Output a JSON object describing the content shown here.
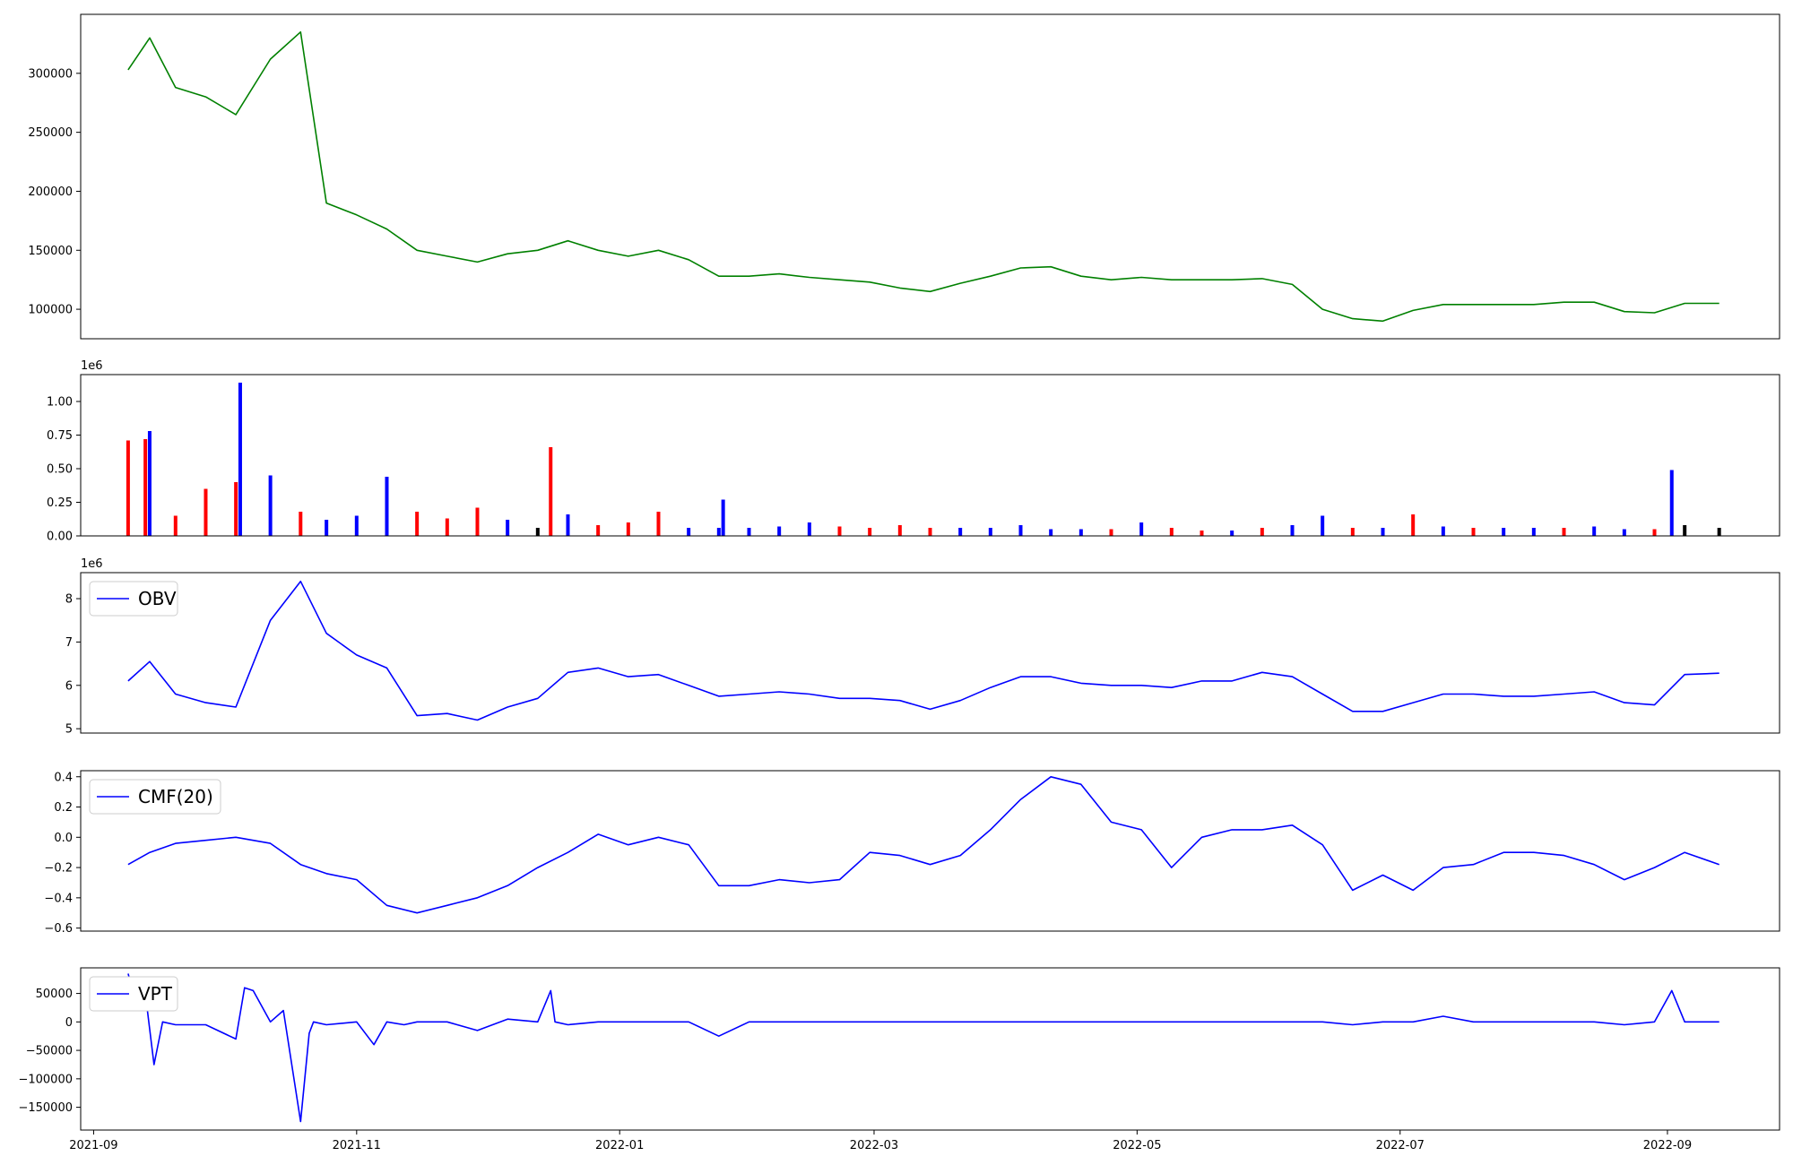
{
  "chart_data": [
    {
      "type": "line",
      "x_unit": "date",
      "x": [
        "2021-09-09",
        "2021-09-14",
        "2021-09-20",
        "2021-09-27",
        "2021-10-04",
        "2021-10-12",
        "2021-10-19",
        "2021-10-25",
        "2021-11-01",
        "2021-11-08",
        "2021-11-15",
        "2021-11-22",
        "2021-11-29",
        "2021-12-06",
        "2021-12-13",
        "2021-12-20",
        "2021-12-27",
        "2022-01-03",
        "2022-01-10",
        "2022-01-17",
        "2022-01-24",
        "2022-01-31",
        "2022-02-07",
        "2022-02-14",
        "2022-02-21",
        "2022-02-28",
        "2022-03-07",
        "2022-03-14",
        "2022-03-21",
        "2022-03-28",
        "2022-04-04",
        "2022-04-11",
        "2022-04-18",
        "2022-04-25",
        "2022-05-02",
        "2022-05-09",
        "2022-05-16",
        "2022-05-23",
        "2022-05-30",
        "2022-06-06",
        "2022-06-13",
        "2022-06-20",
        "2022-06-27",
        "2022-07-04",
        "2022-07-11",
        "2022-07-18",
        "2022-07-25",
        "2022-08-01",
        "2022-08-08",
        "2022-08-15",
        "2022-08-22",
        "2022-08-29",
        "2022-09-05",
        "2022-09-13"
      ],
      "series": [
        {
          "values": [
            303000,
            330000,
            288000,
            280000,
            265000,
            312000,
            335000,
            190000,
            180000,
            168000,
            150000,
            145000,
            140000,
            147000,
            150000,
            158000,
            150000,
            145000,
            150000,
            142000,
            128000,
            128000,
            130000,
            127000,
            125000,
            123000,
            118000,
            115000,
            122000,
            128000,
            135000,
            136000,
            128000,
            125000,
            127000,
            125000,
            125000,
            125000,
            126000,
            121000,
            100000,
            92000,
            90000,
            99000,
            104000,
            104000,
            104000,
            104000,
            106000,
            106000,
            98000,
            97000,
            105000,
            105000
          ]
        }
      ],
      "ylim": [
        75000,
        350000
      ],
      "yticks": [
        100000,
        150000,
        200000,
        250000,
        300000
      ],
      "ytick_labels": [
        "100000",
        "150000",
        "200000",
        "250000",
        "300000"
      ],
      "line_color": "#008000"
    },
    {
      "type": "bar",
      "x_unit": "date",
      "x": [
        "2021-09-09",
        "2021-09-13",
        "2021-09-14",
        "2021-09-20",
        "2021-09-27",
        "2021-10-04",
        "2021-10-05",
        "2021-10-12",
        "2021-10-19",
        "2021-10-25",
        "2021-11-01",
        "2021-11-08",
        "2021-11-15",
        "2021-11-22",
        "2021-11-29",
        "2021-12-06",
        "2021-12-13",
        "2021-12-16",
        "2021-12-20",
        "2021-12-27",
        "2022-01-03",
        "2022-01-10",
        "2022-01-17",
        "2022-01-24",
        "2022-01-25",
        "2022-01-31",
        "2022-02-07",
        "2022-02-14",
        "2022-02-21",
        "2022-02-28",
        "2022-03-07",
        "2022-03-14",
        "2022-03-21",
        "2022-03-28",
        "2022-04-04",
        "2022-04-11",
        "2022-04-18",
        "2022-04-25",
        "2022-05-02",
        "2022-05-09",
        "2022-05-16",
        "2022-05-23",
        "2022-05-30",
        "2022-06-06",
        "2022-06-13",
        "2022-06-20",
        "2022-06-27",
        "2022-07-04",
        "2022-07-11",
        "2022-07-18",
        "2022-07-25",
        "2022-08-01",
        "2022-08-08",
        "2022-08-15",
        "2022-08-22",
        "2022-08-29",
        "2022-09-02",
        "2022-09-05",
        "2022-09-13"
      ],
      "values": [
        710000,
        720000,
        780000,
        150000,
        350000,
        400000,
        1140000,
        450000,
        180000,
        120000,
        150000,
        440000,
        180000,
        130000,
        210000,
        120000,
        60000,
        660000,
        160000,
        80000,
        100000,
        180000,
        60000,
        60000,
        270000,
        60000,
        70000,
        100000,
        70000,
        60000,
        80000,
        60000,
        60000,
        60000,
        80000,
        50000,
        50000,
        50000,
        100000,
        60000,
        40000,
        40000,
        60000,
        80000,
        150000,
        60000,
        60000,
        160000,
        70000,
        60000,
        60000,
        60000,
        60000,
        70000,
        50000,
        50000,
        490000,
        80000,
        60000
      ],
      "colors": [
        "#ff0000",
        "#ff0000",
        "#0000ff",
        "#ff0000",
        "#ff0000",
        "#ff0000",
        "#0000ff",
        "#0000ff",
        "#ff0000",
        "#0000ff",
        "#0000ff",
        "#0000ff",
        "#ff0000",
        "#ff0000",
        "#ff0000",
        "#0000ff",
        "#000000",
        "#ff0000",
        "#0000ff",
        "#ff0000",
        "#ff0000",
        "#ff0000",
        "#0000ff",
        "#0000ff",
        "#0000ff",
        "#0000ff",
        "#0000ff",
        "#0000ff",
        "#ff0000",
        "#ff0000",
        "#ff0000",
        "#ff0000",
        "#0000ff",
        "#0000ff",
        "#0000ff",
        "#0000ff",
        "#0000ff",
        "#ff0000",
        "#0000ff",
        "#ff0000",
        "#ff0000",
        "#0000ff",
        "#ff0000",
        "#0000ff",
        "#0000ff",
        "#ff0000",
        "#0000ff",
        "#ff0000",
        "#0000ff",
        "#ff0000",
        "#0000ff",
        "#0000ff",
        "#ff0000",
        "#0000ff",
        "#0000ff",
        "#ff0000",
        "#0000ff",
        "#000000",
        "#000000"
      ],
      "offset_label": "1e6",
      "ylim": [
        0,
        1200000
      ],
      "yticks": [
        0,
        250000,
        500000,
        750000,
        1000000
      ],
      "ytick_labels": [
        "0.00",
        "0.25",
        "0.50",
        "0.75",
        "1.00"
      ]
    },
    {
      "type": "line",
      "x_unit": "date",
      "x": [
        "2021-09-09",
        "2021-09-14",
        "2021-09-20",
        "2021-09-27",
        "2021-10-04",
        "2021-10-12",
        "2021-10-19",
        "2021-10-25",
        "2021-11-01",
        "2021-11-08",
        "2021-11-15",
        "2021-11-22",
        "2021-11-29",
        "2021-12-06",
        "2021-12-13",
        "2021-12-20",
        "2021-12-27",
        "2022-01-03",
        "2022-01-10",
        "2022-01-17",
        "2022-01-24",
        "2022-01-31",
        "2022-02-07",
        "2022-02-14",
        "2022-02-21",
        "2022-02-28",
        "2022-03-07",
        "2022-03-14",
        "2022-03-21",
        "2022-03-28",
        "2022-04-04",
        "2022-04-11",
        "2022-04-18",
        "2022-04-25",
        "2022-05-02",
        "2022-05-09",
        "2022-05-16",
        "2022-05-23",
        "2022-05-30",
        "2022-06-06",
        "2022-06-13",
        "2022-06-20",
        "2022-06-27",
        "2022-07-04",
        "2022-07-11",
        "2022-07-18",
        "2022-07-25",
        "2022-08-01",
        "2022-08-08",
        "2022-08-15",
        "2022-08-22",
        "2022-08-29",
        "2022-09-05",
        "2022-09-13"
      ],
      "series": [
        {
          "name": "OBV",
          "values": [
            6100000,
            6550000,
            5800000,
            5600000,
            5500000,
            7500000,
            8400000,
            7200000,
            6700000,
            6400000,
            5300000,
            5350000,
            5200000,
            5500000,
            5700000,
            6300000,
            6400000,
            6200000,
            6250000,
            6000000,
            5750000,
            5800000,
            5850000,
            5800000,
            5700000,
            5700000,
            5650000,
            5450000,
            5650000,
            5950000,
            6200000,
            6200000,
            6050000,
            6000000,
            6000000,
            5950000,
            6100000,
            6100000,
            6300000,
            6200000,
            5800000,
            5400000,
            5400000,
            5600000,
            5800000,
            5800000,
            5750000,
            5750000,
            5800000,
            5850000,
            5600000,
            5550000,
            6250000,
            6280000
          ]
        }
      ],
      "offset_label": "1e6",
      "ylim": [
        4900000,
        8600000
      ],
      "yticks": [
        5000000,
        6000000,
        7000000,
        8000000
      ],
      "ytick_labels": [
        "5",
        "6",
        "7",
        "8"
      ],
      "legend": "top-left"
    },
    {
      "type": "line",
      "x_unit": "date",
      "x": [
        "2021-09-09",
        "2021-09-14",
        "2021-09-20",
        "2021-09-27",
        "2021-10-04",
        "2021-10-12",
        "2021-10-19",
        "2021-10-25",
        "2021-11-01",
        "2021-11-08",
        "2021-11-15",
        "2021-11-22",
        "2021-11-29",
        "2021-12-06",
        "2021-12-13",
        "2021-12-20",
        "2021-12-27",
        "2022-01-03",
        "2022-01-10",
        "2022-01-17",
        "2022-01-24",
        "2022-01-31",
        "2022-02-07",
        "2022-02-14",
        "2022-02-21",
        "2022-02-28",
        "2022-03-07",
        "2022-03-14",
        "2022-03-21",
        "2022-03-28",
        "2022-04-04",
        "2022-04-11",
        "2022-04-18",
        "2022-04-25",
        "2022-05-02",
        "2022-05-09",
        "2022-05-16",
        "2022-05-23",
        "2022-05-30",
        "2022-06-06",
        "2022-06-13",
        "2022-06-20",
        "2022-06-27",
        "2022-07-04",
        "2022-07-11",
        "2022-07-18",
        "2022-07-25",
        "2022-08-01",
        "2022-08-08",
        "2022-08-15",
        "2022-08-22",
        "2022-08-29",
        "2022-09-05",
        "2022-09-13"
      ],
      "series": [
        {
          "name": "CMF(20)",
          "values": [
            -0.18,
            -0.1,
            -0.04,
            -0.02,
            0.0,
            -0.04,
            -0.18,
            -0.24,
            -0.28,
            -0.45,
            -0.5,
            -0.45,
            -0.4,
            -0.32,
            -0.2,
            -0.1,
            0.02,
            -0.05,
            0.0,
            -0.05,
            -0.32,
            -0.32,
            -0.28,
            -0.3,
            -0.28,
            -0.1,
            -0.12,
            -0.18,
            -0.12,
            0.05,
            0.25,
            0.4,
            0.35,
            0.1,
            0.05,
            -0.2,
            0.0,
            0.05,
            0.05,
            0.08,
            -0.05,
            -0.35,
            -0.25,
            -0.35,
            -0.2,
            -0.18,
            -0.1,
            -0.1,
            -0.12,
            -0.18,
            -0.28,
            -0.2,
            -0.1,
            -0.18
          ]
        }
      ],
      "ylim": [
        -0.62,
        0.44
      ],
      "yticks": [
        -0.6,
        -0.4,
        -0.2,
        0.0,
        0.2,
        0.4
      ],
      "ytick_labels": [
        "−0.6",
        "−0.4",
        "−0.2",
        "0.0",
        "0.2",
        "0.4"
      ],
      "legend": "top-left"
    },
    {
      "type": "line",
      "x_unit": "date",
      "x": [
        "2021-09-09",
        "2021-09-11",
        "2021-09-13",
        "2021-09-15",
        "2021-09-17",
        "2021-09-20",
        "2021-09-27",
        "2021-10-04",
        "2021-10-06",
        "2021-10-08",
        "2021-10-12",
        "2021-10-15",
        "2021-10-19",
        "2021-10-21",
        "2021-10-22",
        "2021-10-25",
        "2021-11-01",
        "2021-11-05",
        "2021-11-08",
        "2021-11-12",
        "2021-11-15",
        "2021-11-22",
        "2021-11-29",
        "2021-12-06",
        "2021-12-13",
        "2021-12-16",
        "2021-12-17",
        "2021-12-20",
        "2021-12-27",
        "2022-01-03",
        "2022-01-10",
        "2022-01-17",
        "2022-01-24",
        "2022-01-31",
        "2022-02-07",
        "2022-02-14",
        "2022-02-21",
        "2022-02-28",
        "2022-03-07",
        "2022-03-14",
        "2022-03-21",
        "2022-03-28",
        "2022-04-04",
        "2022-04-11",
        "2022-04-18",
        "2022-04-25",
        "2022-05-02",
        "2022-05-09",
        "2022-05-16",
        "2022-05-23",
        "2022-05-30",
        "2022-06-06",
        "2022-06-13",
        "2022-06-20",
        "2022-06-27",
        "2022-07-04",
        "2022-07-11",
        "2022-07-18",
        "2022-07-25",
        "2022-08-01",
        "2022-08-08",
        "2022-08-15",
        "2022-08-22",
        "2022-08-29",
        "2022-09-02",
        "2022-09-05",
        "2022-09-13"
      ],
      "series": [
        {
          "name": "VPT",
          "values": [
            85000,
            30000,
            50000,
            -75000,
            0,
            -5000,
            -5000,
            -30000,
            60000,
            55000,
            0,
            20000,
            -175000,
            -20000,
            0,
            -5000,
            0,
            -40000,
            0,
            -5000,
            0,
            0,
            -15000,
            5000,
            0,
            55000,
            0,
            -5000,
            0,
            0,
            0,
            0,
            -25000,
            0,
            0,
            0,
            0,
            0,
            0,
            0,
            0,
            0,
            0,
            0,
            0,
            0,
            0,
            0,
            0,
            0,
            0,
            0,
            0,
            -5000,
            0,
            0,
            10000,
            0,
            0,
            0,
            0,
            0,
            -5000,
            0,
            55000,
            0,
            0
          ]
        }
      ],
      "ylim": [
        -190000,
        95000
      ],
      "yticks": [
        -150000,
        -100000,
        -50000,
        0,
        50000
      ],
      "ytick_labels": [
        "−150000",
        "−100000",
        "−50000",
        "0",
        "50000"
      ],
      "xticks": [
        "2021-09-01",
        "2021-11-01",
        "2022-01-01",
        "2022-03-01",
        "2022-05-01",
        "2022-07-01",
        "2022-09-01"
      ],
      "xtick_labels": [
        "2021-09",
        "2021-11",
        "2022-01",
        "2022-03",
        "2022-05",
        "2022-07",
        "2022-09"
      ],
      "legend": "top-left"
    }
  ]
}
